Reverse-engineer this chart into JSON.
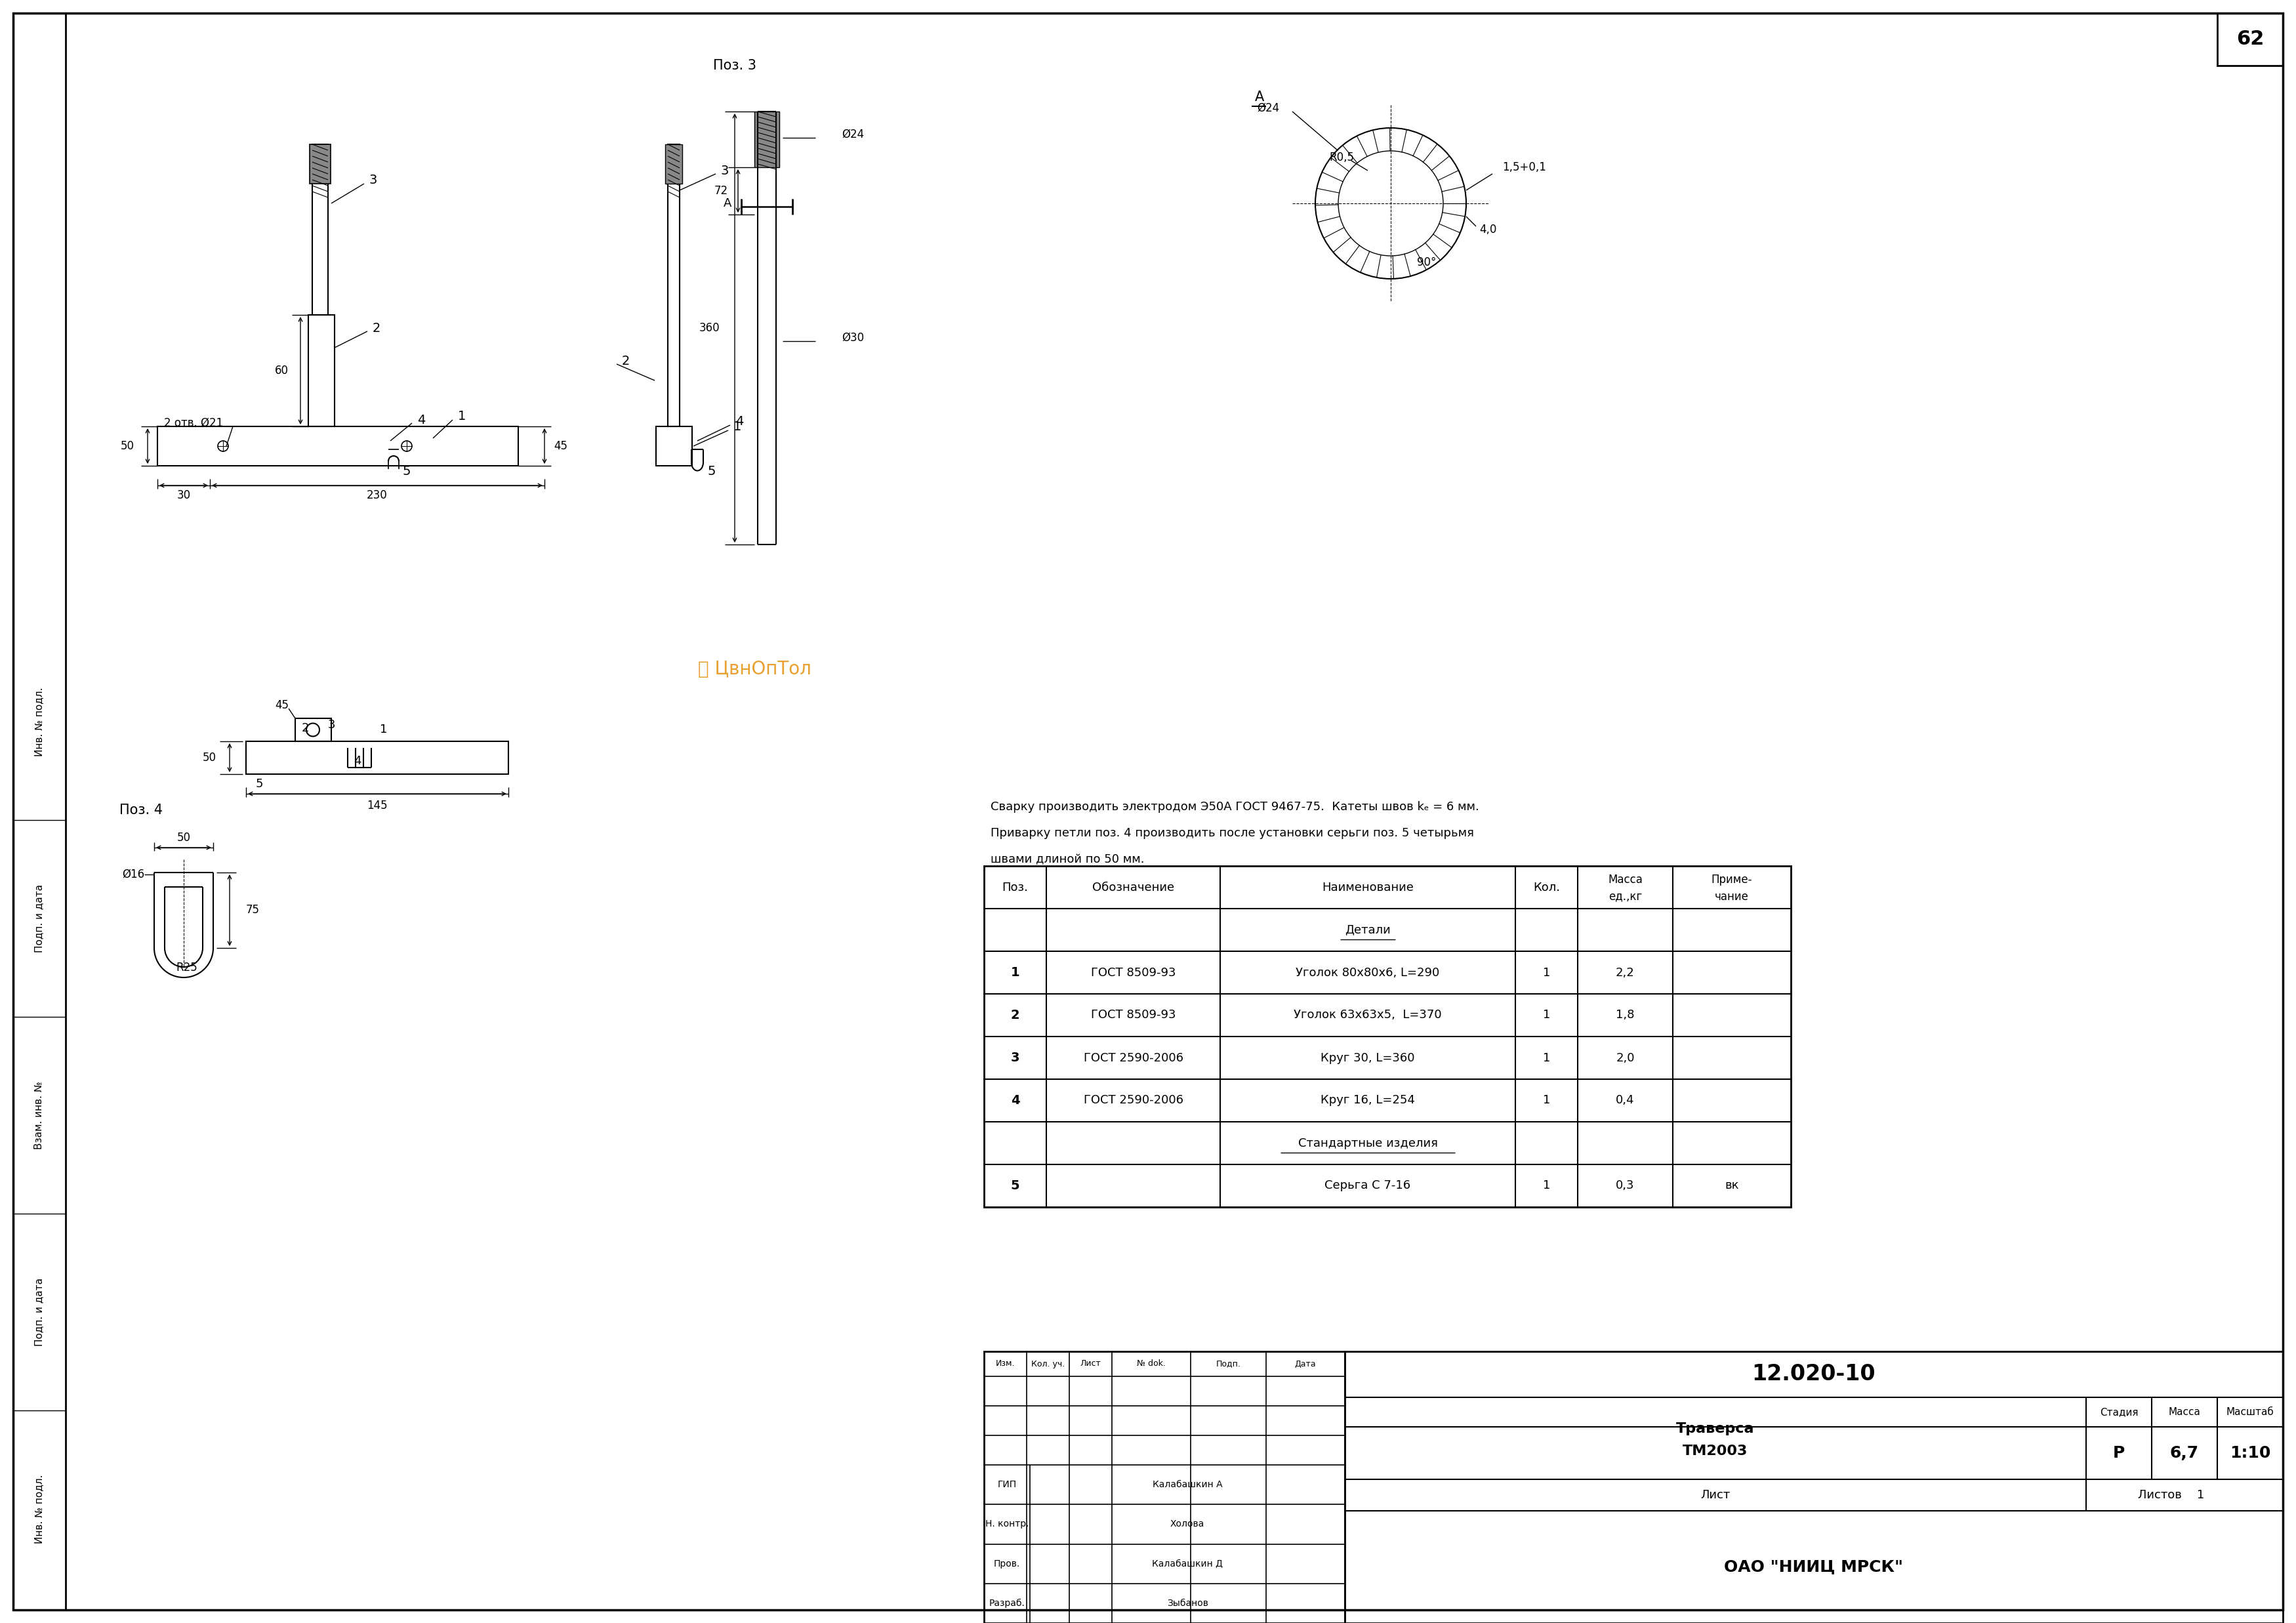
{
  "page_number": "62",
  "bg_color": "#ffffff",
  "title_block": {
    "doc_number": "12.020-10",
    "name_line1": "Траверса",
    "name_line2": "ТМ2003",
    "stage": "Р",
    "mass": "6,7",
    "scale": "1:10",
    "sheets_count": "1",
    "org": "ОАО \"НИИЦ МРСК\"",
    "roles": [
      {
        "role": "ГИП",
        "name": "Калабашкин А"
      },
      {
        "role": "Н. контр.",
        "name": "Холова"
      },
      {
        "role": "Пров.",
        "name": "Калабашкин Д"
      },
      {
        "role": "Разраб.",
        "name": "Зыбанов"
      }
    ],
    "stamp_headers": [
      "Изм.",
      "Кол. уч.",
      "Лист",
      "№ dok.",
      "Подп.",
      "Дата"
    ]
  },
  "bom_col_headers": [
    "Поз.",
    "Обозначение",
    "Наименование",
    "Кол.",
    "Масса\nед.,кг",
    "Приме-\nчание"
  ],
  "bom_rows": [
    [
      "",
      "",
      "Детали",
      "",
      "",
      ""
    ],
    [
      "1",
      "ГОСТ 8509-93",
      "Уголок 80х80х6, L=290",
      "1",
      "2,2",
      ""
    ],
    [
      "2",
      "ГОСТ 8509-93",
      "Уголок 63х63х5,  L=370",
      "1",
      "1,8",
      ""
    ],
    [
      "3",
      "ГОСТ 2590-2006",
      "Круг 30, L=360",
      "1",
      "2,0",
      ""
    ],
    [
      "4",
      "ГОСТ 2590-2006",
      "Круг 16, L=254",
      "1",
      "0,4",
      ""
    ],
    [
      "",
      "",
      "Стандартные изделия",
      "",
      "",
      ""
    ],
    [
      "5",
      "",
      "Серьга С 7-16",
      "1",
      "0,3",
      "вк"
    ]
  ],
  "notes_lines": [
    "Сварку производить электродом Э50А ГОСТ 9467-75.  Катеты швов kₑ = 6 мм.",
    "Приварку петли поз. 4 производить после установки серьги поз. 5 четырьмя",
    "швами длиной по 50 мм."
  ],
  "watermark": "ⓘ ЦвнОпТол"
}
